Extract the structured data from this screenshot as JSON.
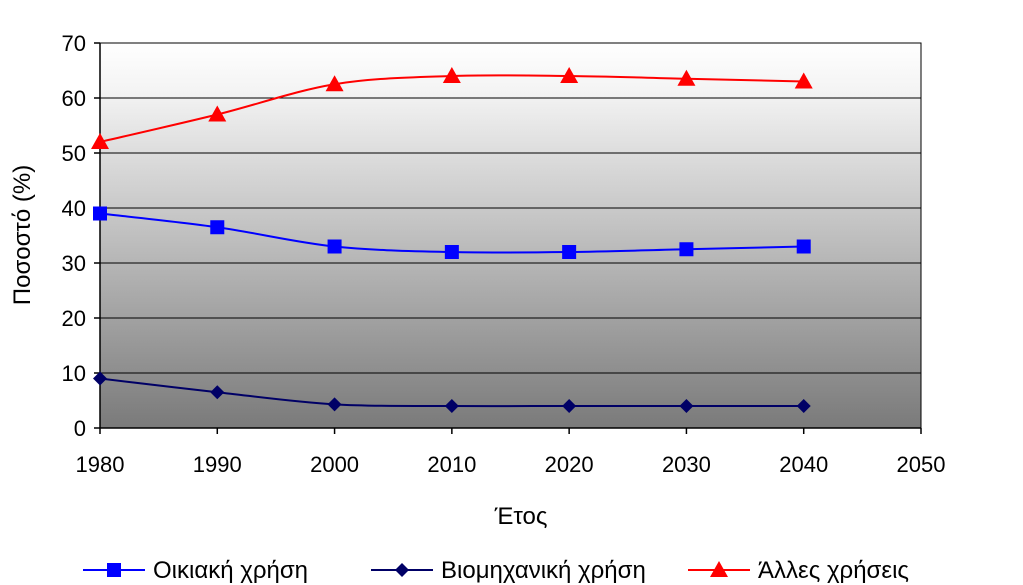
{
  "chart_data": {
    "type": "line",
    "xlabel": "Έτος",
    "ylabel": "Ποσοστό (%)",
    "xlim": [
      1980,
      2050
    ],
    "ylim": [
      0,
      70
    ],
    "xticks": [
      1980,
      1990,
      2000,
      2010,
      2020,
      2030,
      2040,
      2050
    ],
    "yticks": [
      0,
      10,
      20,
      30,
      40,
      50,
      60,
      70
    ],
    "grid": true,
    "legend_position": "bottom",
    "series": [
      {
        "name": "Οικιακή χρήση",
        "color": "#0000ff",
        "marker": "square",
        "x": [
          1980,
          1990,
          2000,
          2010,
          2020,
          2030,
          2040
        ],
        "values": [
          39,
          36.5,
          33,
          32,
          32,
          32.5,
          33
        ]
      },
      {
        "name": "Βιομηχανική χρήση",
        "color": "#000066",
        "marker": "diamond",
        "x": [
          1980,
          1990,
          2000,
          2010,
          2020,
          2030,
          2040
        ],
        "values": [
          9,
          6.5,
          4.3,
          4,
          4,
          4,
          4
        ]
      },
      {
        "name": "Άλλες χρήσεις",
        "color": "#ff0000",
        "marker": "triangle",
        "x": [
          1980,
          1990,
          2000,
          2010,
          2020,
          2030,
          2040
        ],
        "values": [
          52,
          57,
          62.5,
          64,
          64,
          63.5,
          63
        ]
      }
    ]
  }
}
